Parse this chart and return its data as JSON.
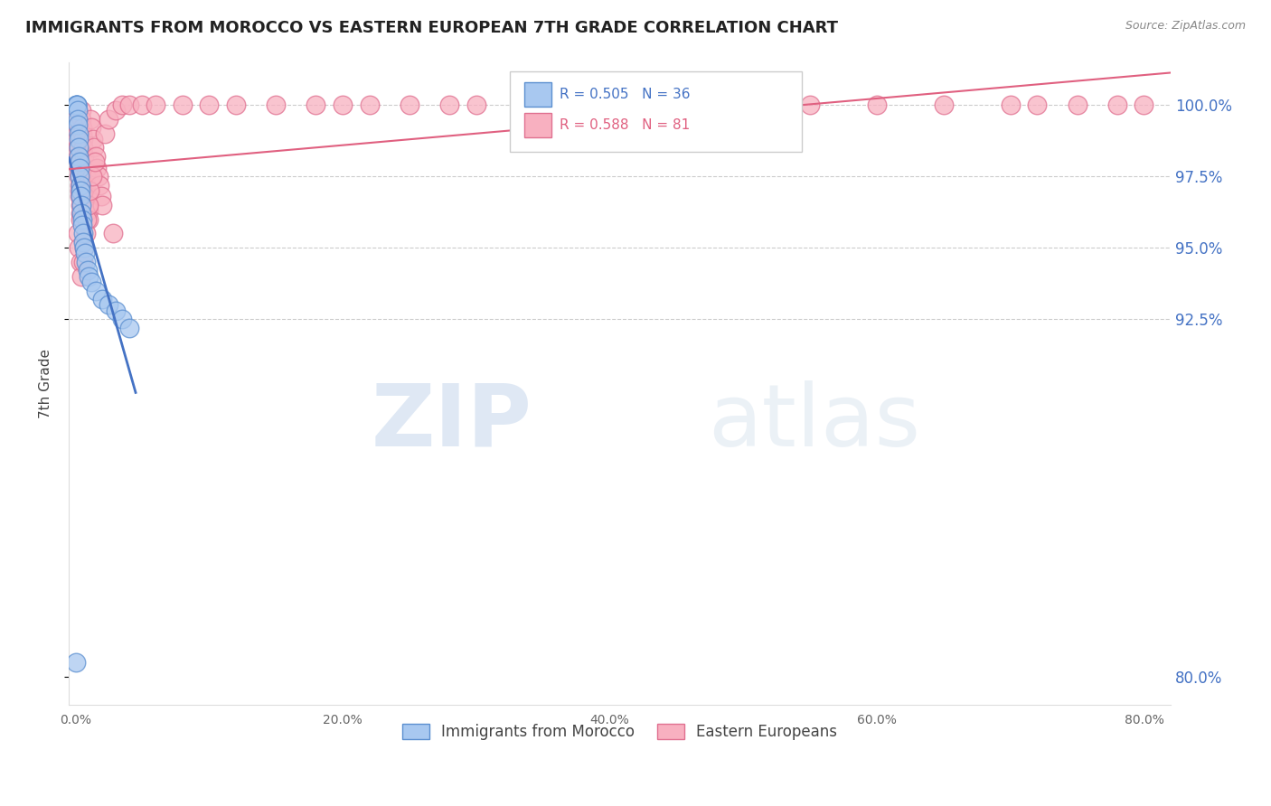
{
  "title": "IMMIGRANTS FROM MOROCCO VS EASTERN EUROPEAN 7TH GRADE CORRELATION CHART",
  "source": "Source: ZipAtlas.com",
  "ylabel_left": "7th Grade",
  "ylim": [
    79.0,
    101.5
  ],
  "xlim": [
    -0.5,
    82.0
  ],
  "blue_color": "#A8C8F0",
  "blue_edge_color": "#5B8FD0",
  "pink_color": "#F8B0C0",
  "pink_edge_color": "#E07090",
  "blue_line_color": "#4472C4",
  "pink_line_color": "#E06080",
  "R_blue": 0.505,
  "N_blue": 36,
  "R_pink": 0.588,
  "N_pink": 81,
  "watermark": "ZIPatlas",
  "watermark_color": "#D0E4F8",
  "background_color": "#FFFFFF",
  "grid_color": "#CCCCCC",
  "right_tick_color": "#4472C4",
  "blue_x": [
    0.05,
    0.08,
    0.1,
    0.12,
    0.15,
    0.15,
    0.18,
    0.2,
    0.22,
    0.25,
    0.25,
    0.28,
    0.3,
    0.32,
    0.35,
    0.38,
    0.4,
    0.42,
    0.45,
    0.48,
    0.5,
    0.55,
    0.6,
    0.65,
    0.7,
    0.8,
    0.9,
    1.0,
    1.2,
    1.5,
    2.0,
    2.5,
    3.0,
    3.5,
    4.0,
    0.05
  ],
  "blue_y": [
    100.0,
    100.0,
    100.0,
    100.0,
    99.8,
    99.5,
    99.3,
    99.0,
    98.8,
    98.5,
    98.2,
    98.0,
    97.8,
    97.5,
    97.2,
    97.0,
    96.8,
    96.5,
    96.2,
    96.0,
    95.8,
    95.5,
    95.2,
    95.0,
    94.8,
    94.5,
    94.2,
    94.0,
    93.8,
    93.5,
    93.2,
    93.0,
    92.8,
    92.5,
    92.2,
    80.5
  ],
  "pink_x": [
    0.05,
    0.08,
    0.1,
    0.12,
    0.15,
    0.18,
    0.2,
    0.22,
    0.25,
    0.28,
    0.3,
    0.32,
    0.35,
    0.38,
    0.4,
    0.42,
    0.45,
    0.48,
    0.5,
    0.55,
    0.6,
    0.65,
    0.7,
    0.75,
    0.8,
    0.85,
    0.9,
    0.95,
    1.0,
    1.1,
    1.2,
    1.3,
    1.4,
    1.5,
    1.6,
    1.7,
    1.8,
    1.9,
    2.0,
    2.2,
    2.5,
    3.0,
    3.5,
    4.0,
    5.0,
    6.0,
    8.0,
    10.0,
    12.0,
    15.0,
    18.0,
    20.0,
    22.0,
    25.0,
    28.0,
    30.0,
    35.0,
    40.0,
    45.0,
    50.0,
    55.0,
    60.0,
    65.0,
    70.0,
    72.0,
    75.0,
    78.0,
    80.0,
    0.15,
    0.25,
    0.35,
    0.45,
    0.55,
    0.65,
    0.75,
    0.85,
    0.95,
    1.05,
    1.25,
    1.45,
    2.8
  ],
  "pink_y": [
    99.5,
    99.2,
    99.0,
    98.8,
    98.5,
    98.2,
    98.0,
    97.8,
    97.5,
    97.2,
    97.0,
    96.8,
    96.5,
    96.2,
    96.0,
    99.8,
    99.5,
    99.2,
    99.0,
    98.8,
    98.5,
    98.2,
    97.0,
    97.5,
    97.2,
    96.5,
    96.8,
    96.3,
    96.0,
    99.5,
    99.2,
    98.8,
    98.5,
    98.2,
    97.8,
    97.5,
    97.2,
    96.8,
    96.5,
    99.0,
    99.5,
    99.8,
    100.0,
    100.0,
    100.0,
    100.0,
    100.0,
    100.0,
    100.0,
    100.0,
    100.0,
    100.0,
    100.0,
    100.0,
    100.0,
    100.0,
    100.0,
    100.0,
    100.0,
    100.0,
    100.0,
    100.0,
    100.0,
    100.0,
    100.0,
    100.0,
    100.0,
    100.0,
    95.5,
    95.0,
    94.5,
    94.0,
    94.5,
    95.0,
    95.5,
    96.0,
    96.5,
    97.0,
    97.5,
    98.0,
    95.5
  ]
}
